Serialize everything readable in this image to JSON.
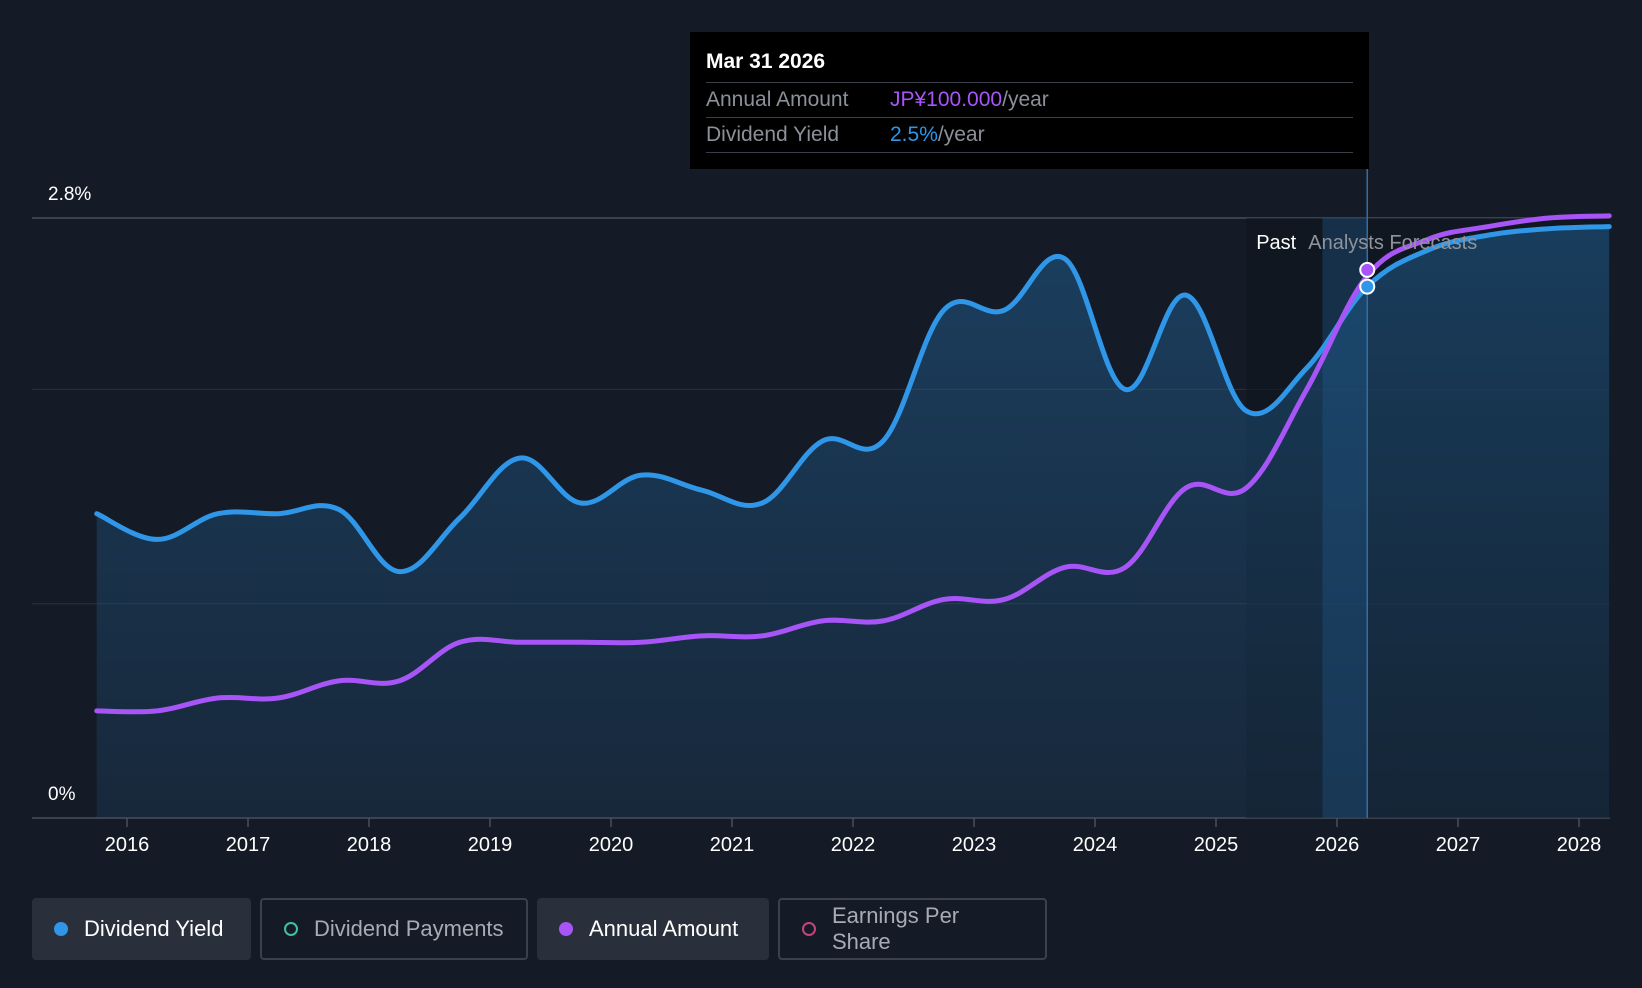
{
  "chart_data": {
    "type": "area",
    "y_axis": {
      "min_label": "0%",
      "max_label": "2.8%",
      "min": 0,
      "max": 2.8
    },
    "x": [
      2015.75,
      2016.25,
      2016.75,
      2017.25,
      2017.75,
      2018.25,
      2018.75,
      2019.25,
      2019.75,
      2020.25,
      2020.75,
      2021.25,
      2021.75,
      2022.25,
      2022.75,
      2023.25,
      2023.75,
      2024.25,
      2024.75,
      2025.25,
      2025.75,
      2026.25,
      2026.75,
      2027.25,
      2027.75,
      2028.25
    ],
    "ticks": [
      "2016",
      "2017",
      "2018",
      "2019",
      "2020",
      "2021",
      "2022",
      "2023",
      "2024",
      "2025",
      "2026",
      "2027",
      "2028"
    ],
    "tick_values": [
      2016,
      2017,
      2018,
      2019,
      2020,
      2021,
      2022,
      2023,
      2024,
      2025,
      2026,
      2027,
      2028
    ],
    "series": [
      {
        "name": "Dividend Yield",
        "color": "#2f96e8",
        "values": [
          1.42,
          1.3,
          1.42,
          1.42,
          1.44,
          1.15,
          1.4,
          1.68,
          1.47,
          1.6,
          1.53,
          1.47,
          1.76,
          1.76,
          2.37,
          2.37,
          2.61,
          2.0,
          2.44,
          1.9,
          2.1,
          2.48,
          2.65,
          2.72,
          2.75,
          2.76
        ]
      },
      {
        "name": "Annual Amount",
        "color": "#a855f7",
        "values": [
          0.5,
          0.5,
          0.56,
          0.56,
          0.64,
          0.64,
          0.82,
          0.82,
          0.82,
          0.82,
          0.85,
          0.85,
          0.92,
          0.92,
          1.02,
          1.02,
          1.17,
          1.17,
          1.54,
          1.54,
          2.0,
          2.53,
          2.7,
          2.76,
          2.8,
          2.81
        ]
      }
    ],
    "past_label": "Past",
    "forecast_label": "Analysts Forecasts",
    "forecast_start": 2025.25,
    "highlight_x": 2026.25,
    "highlight_values": [
      2.48,
      2.53
    ]
  },
  "tooltip": {
    "date": "Mar 31 2026",
    "annual_amount_label": "Annual Amount",
    "annual_amount_value": "JP¥100.000",
    "annual_amount_unit": "/year",
    "dividend_yield_label": "Dividend Yield",
    "dividend_yield_value": "2.5%",
    "dividend_yield_unit": "/year"
  },
  "legend": [
    {
      "label": "Dividend Yield",
      "color": "#2f96e8",
      "active": true
    },
    {
      "label": "Dividend Payments",
      "color": "#3fbfa8",
      "active": false
    },
    {
      "label": "Annual Amount",
      "color": "#a855f7",
      "active": true
    },
    {
      "label": "Earnings Per Share",
      "color": "#c2457a",
      "active": false
    }
  ]
}
